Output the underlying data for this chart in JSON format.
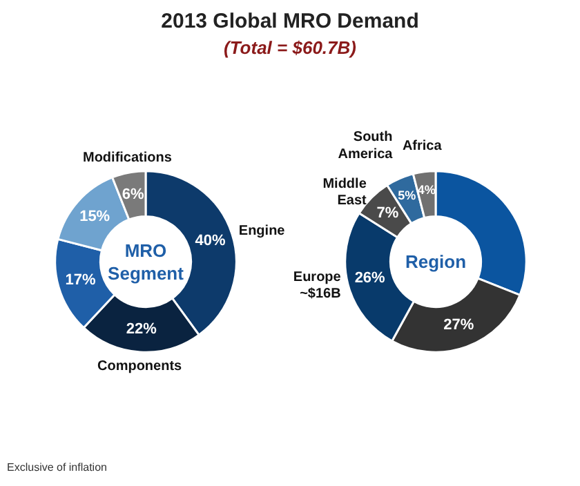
{
  "chart_data": [
    {
      "type": "donut",
      "title": "2013 Global MRO Demand",
      "subtitle": "(Total = $60.7B)",
      "annotations": [
        "MRO\nSegment",
        "Exclusive of inflation"
      ],
      "categories": [
        "Engine",
        "Components",
        null,
        null,
        "Modifications"
      ],
      "values": [
        40,
        22,
        17,
        15,
        6
      ],
      "value_labels": [
        "40%",
        "22%",
        "17%",
        "15%",
        "6%"
      ],
      "colors": [
        "#0d3a6b",
        "#0a2340",
        "#1f5fa8",
        "#6fa3cf",
        "#7a7a7a"
      ]
    },
    {
      "type": "donut",
      "annotations": [
        "Region"
      ],
      "categories": [
        null,
        null,
        "Europe\n~$16B",
        "Middle\nEast",
        "South\nAmerica",
        "Africa"
      ],
      "values": [
        31,
        27,
        26,
        7,
        5,
        4
      ],
      "value_labels": [
        null,
        "27%",
        "26%",
        "7%",
        "5%",
        "4%"
      ],
      "colors": [
        "#0b55a0",
        "#333333",
        "#083a6b",
        "#4a4a4a",
        "#2f6a9e",
        "#707070"
      ]
    }
  ]
}
